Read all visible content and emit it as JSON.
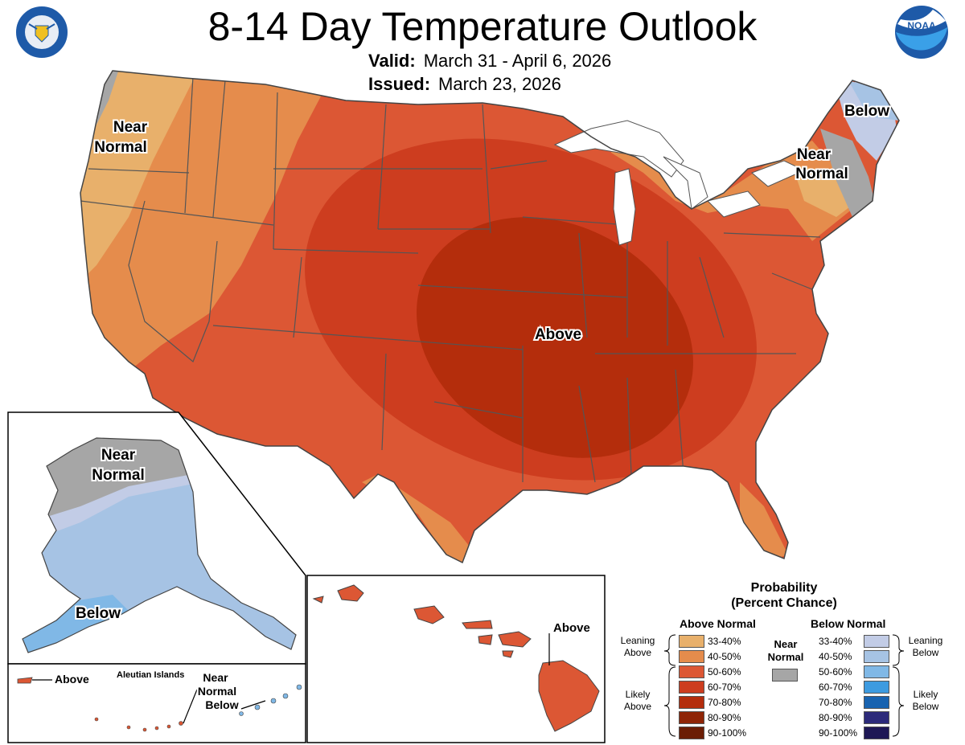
{
  "title": "8-14 Day Temperature Outlook",
  "valid": {
    "label": "Valid:",
    "value": "March 31 - April 6, 2026"
  },
  "issued": {
    "label": "Issued:",
    "value": "March 23, 2026"
  },
  "logos": {
    "left": "department-of-commerce-seal",
    "right": "NOAA",
    "left_seal_text": "DEPARTMENT OF COMMERCE · UNITED STATES OF AMERICA"
  },
  "map_labels": {
    "pacific_nw": [
      "Near",
      "Normal"
    ],
    "central": "Above",
    "northeast_below": "Below",
    "northeast_near": [
      "Near",
      "Normal"
    ],
    "alaska_near": [
      "Near",
      "Normal"
    ],
    "alaska_below": "Below",
    "hawaii_above": "Above",
    "aleutian_title": "Aleutian Islands",
    "aleutian_above": "Above",
    "aleutian_near_below": [
      "Near",
      "Normal",
      "Below"
    ]
  },
  "legend": {
    "title": [
      "Probability",
      "(Percent Chance)"
    ],
    "above_header": "Above Normal",
    "below_header": "Below Normal",
    "near_label": [
      "Near",
      "Normal"
    ],
    "leaning_above": [
      "Leaning",
      "Above"
    ],
    "likely_above": [
      "Likely",
      "Above"
    ],
    "leaning_below": [
      "Leaning",
      "Below"
    ],
    "likely_below": [
      "Likely",
      "Below"
    ],
    "levels": [
      "33-40%",
      "40-50%",
      "50-60%",
      "60-70%",
      "70-80%",
      "80-90%",
      "90-100%"
    ],
    "above_colors": [
      "#e8b06b",
      "#e58c4c",
      "#dc5734",
      "#cd3d1f",
      "#b42d0c",
      "#8f2507",
      "#6b1d05"
    ],
    "below_colors": [
      "#c2cce6",
      "#a6c3e4",
      "#80b8e6",
      "#3d9be0",
      "#1863b0",
      "#2c2a7a",
      "#1e1855"
    ],
    "near_color": "#a6a6a6"
  }
}
